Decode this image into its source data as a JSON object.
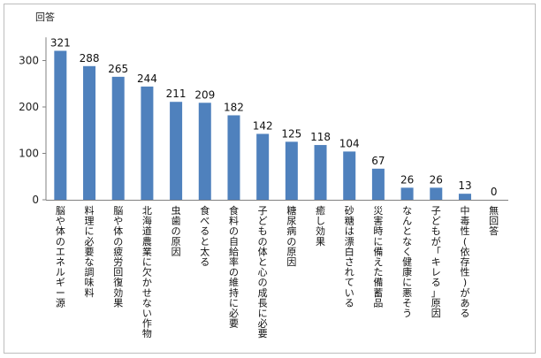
{
  "chart_data": {
    "type": "bar",
    "title": "",
    "xlabel": "",
    "ylabel": "回答",
    "ylim": [
      0,
      350
    ],
    "yticks": [
      0,
      100,
      200,
      300
    ],
    "grid": false,
    "bar_color": "#4f81bd",
    "categories": [
      "脳や体のエネルギー源",
      "料理に必要な調味料",
      "脳や体の疲労回復効果",
      "北海道農業に欠かせない作物",
      "虫歯の原因",
      "食べると太る",
      "食料の自給率の維持に必要",
      "子どもの体と心の成長に必要",
      "糖尿病の原因",
      "癒し効果",
      "砂糖は漂白されている",
      "災害時に備えた備蓄品",
      "なんとなく健康に悪そう",
      "子どもが「キレる」原因",
      "中毒性(依存性)がある",
      "無回答"
    ],
    "values": [
      321,
      288,
      265,
      244,
      211,
      209,
      182,
      142,
      125,
      118,
      104,
      67,
      26,
      26,
      13,
      0
    ]
  }
}
